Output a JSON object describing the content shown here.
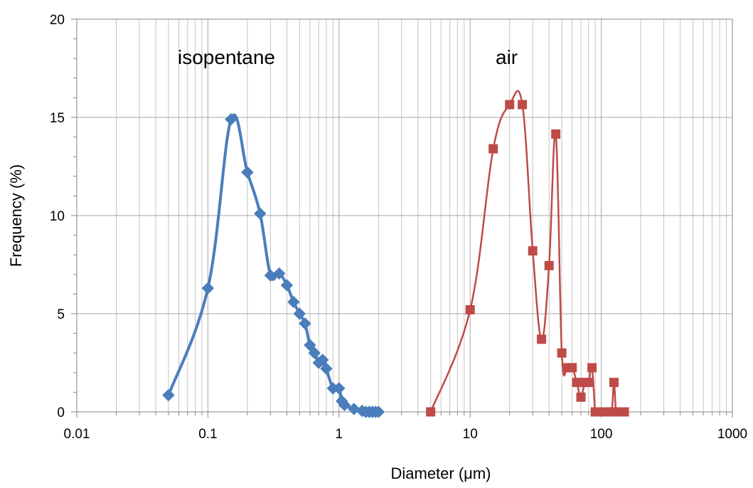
{
  "chart_data": {
    "type": "scatter",
    "title": "",
    "xlabel": "Diameter (μm)",
    "ylabel": "Frequency (%)",
    "xscale": "log",
    "xlim": [
      0.01,
      1000
    ],
    "ylim": [
      0,
      20
    ],
    "x_ticks": [
      "0.01",
      "0.1",
      "1",
      "10",
      "100",
      "1000"
    ],
    "y_ticks": [
      "0",
      "5",
      "10",
      "15",
      "20"
    ],
    "grid": true,
    "series": [
      {
        "name": "isopentane",
        "color": "#4a7ebb",
        "marker": "diamond",
        "x": [
          0.05,
          0.1,
          0.15,
          0.2,
          0.25,
          0.3,
          0.35,
          0.4,
          0.45,
          0.5,
          0.55,
          0.6,
          0.65,
          0.7,
          0.75,
          0.8,
          0.9,
          1.0,
          1.05,
          1.1,
          1.3,
          1.5,
          1.6,
          1.7,
          1.8,
          1.9,
          2.0
        ],
        "y": [
          0.85,
          6.3,
          14.9,
          12.2,
          10.1,
          6.95,
          7.05,
          6.45,
          5.6,
          5.0,
          4.5,
          3.4,
          3.0,
          2.5,
          2.65,
          2.2,
          1.2,
          1.2,
          0.55,
          0.35,
          0.15,
          0.05,
          0.0,
          0.0,
          0.0,
          0.0,
          0.0
        ]
      },
      {
        "name": "air",
        "color": "#be4b48",
        "marker": "square",
        "x": [
          5,
          10,
          15,
          20,
          25,
          30,
          35,
          40,
          45,
          50,
          55,
          60,
          65,
          70,
          75,
          80,
          85,
          90,
          95,
          100,
          110,
          120,
          125,
          130,
          140,
          150
        ],
        "y": [
          0.0,
          5.2,
          13.4,
          15.65,
          15.65,
          8.2,
          3.7,
          7.45,
          14.15,
          3.0,
          2.25,
          2.25,
          1.5,
          0.75,
          1.5,
          1.5,
          2.25,
          0.0,
          0.0,
          0.0,
          0.0,
          0.0,
          1.5,
          0.0,
          0.0,
          0.0
        ]
      }
    ]
  }
}
